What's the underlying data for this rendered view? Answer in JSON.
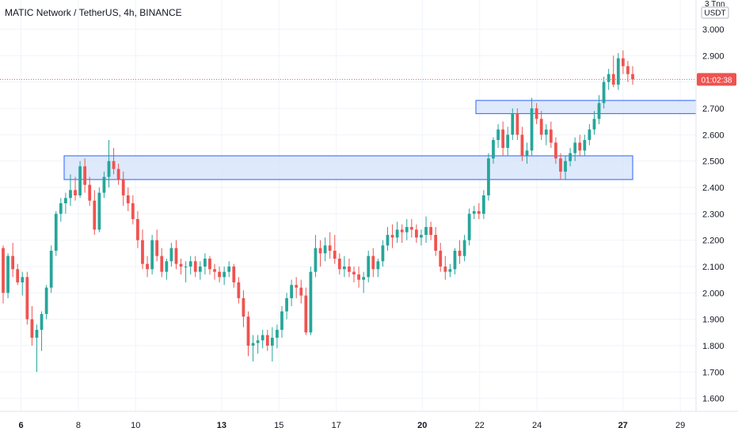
{
  "title": "MATIC Network / TetherUS, 4h, BINANCE",
  "price_axis": {
    "unit": "USDT",
    "scale_mode": "3 Tnn",
    "ticks": [
      "3.000",
      "2.900",
      "2.800",
      "2.700",
      "2.600",
      "2.500",
      "2.400",
      "2.300",
      "2.200",
      "2.100",
      "2.000",
      "1.900",
      "1.800",
      "1.700",
      "1.600"
    ],
    "current_price_label": "01:02:38"
  },
  "time_axis": {
    "ticks": [
      {
        "label": "6",
        "bold": true
      },
      {
        "label": "8",
        "bold": false
      },
      {
        "label": "10",
        "bold": false
      },
      {
        "label": "13",
        "bold": true
      },
      {
        "label": "15",
        "bold": false
      },
      {
        "label": "17",
        "bold": false
      },
      {
        "label": "20",
        "bold": true
      },
      {
        "label": "22",
        "bold": false
      },
      {
        "label": "24",
        "bold": false
      },
      {
        "label": "27",
        "bold": true
      },
      {
        "label": "29",
        "bold": false
      }
    ]
  },
  "colors": {
    "up": "#26a69a",
    "down": "#ef5350",
    "zone_fill": "#d6e4fb",
    "zone_border": "#2962ff",
    "current_price": "#ef5350",
    "grid": "#f0f3fa"
  },
  "chart_data": {
    "type": "candlestick",
    "timeframe": "4h",
    "symbol": "MATIC Network / TetherUS",
    "exchange": "BINANCE",
    "ylim": [
      1.55,
      3.05
    ],
    "x_ticks": [
      "6",
      "8",
      "10",
      "13",
      "15",
      "17",
      "20",
      "22",
      "24",
      "27",
      "29"
    ],
    "current_price": 2.81,
    "zones": [
      {
        "from": "7",
        "to": "27",
        "low": 2.43,
        "high": 2.52
      },
      {
        "from": "22",
        "to": "29",
        "low": 2.68,
        "high": 2.73
      }
    ],
    "candles_ohlc": [
      [
        2.17,
        2.18,
        1.96,
        2.0
      ],
      [
        2.0,
        2.15,
        1.98,
        2.14
      ],
      [
        2.14,
        2.19,
        2.06,
        2.09
      ],
      [
        2.09,
        2.11,
        2.03,
        2.04
      ],
      [
        2.04,
        2.08,
        1.99,
        2.06
      ],
      [
        2.06,
        2.08,
        1.88,
        1.9
      ],
      [
        1.9,
        1.95,
        1.8,
        1.83
      ],
      [
        1.83,
        1.88,
        1.7,
        1.86
      ],
      [
        1.86,
        1.93,
        1.78,
        1.92
      ],
      [
        1.92,
        2.03,
        1.9,
        2.02
      ],
      [
        2.02,
        2.18,
        2.0,
        2.16
      ],
      [
        2.16,
        2.31,
        2.14,
        2.3
      ],
      [
        2.3,
        2.36,
        2.27,
        2.34
      ],
      [
        2.34,
        2.38,
        2.3,
        2.36
      ],
      [
        2.36,
        2.45,
        2.33,
        2.39
      ],
      [
        2.39,
        2.44,
        2.35,
        2.37
      ],
      [
        2.37,
        2.5,
        2.36,
        2.48
      ],
      [
        2.48,
        2.51,
        2.38,
        2.41
      ],
      [
        2.41,
        2.44,
        2.33,
        2.35
      ],
      [
        2.35,
        2.39,
        2.22,
        2.24
      ],
      [
        2.24,
        2.4,
        2.23,
        2.38
      ],
      [
        2.38,
        2.46,
        2.36,
        2.44
      ],
      [
        2.44,
        2.58,
        2.4,
        2.5
      ],
      [
        2.5,
        2.55,
        2.45,
        2.47
      ],
      [
        2.47,
        2.49,
        2.41,
        2.43
      ],
      [
        2.43,
        2.46,
        2.33,
        2.37
      ],
      [
        2.37,
        2.4,
        2.31,
        2.34
      ],
      [
        2.34,
        2.37,
        2.26,
        2.28
      ],
      [
        2.28,
        2.31,
        2.17,
        2.2
      ],
      [
        2.2,
        2.24,
        2.09,
        2.11
      ],
      [
        2.11,
        2.14,
        2.06,
        2.09
      ],
      [
        2.09,
        2.22,
        2.07,
        2.2
      ],
      [
        2.2,
        2.24,
        2.12,
        2.14
      ],
      [
        2.14,
        2.17,
        2.06,
        2.08
      ],
      [
        2.08,
        2.13,
        2.05,
        2.12
      ],
      [
        2.12,
        2.19,
        2.1,
        2.17
      ],
      [
        2.17,
        2.2,
        2.09,
        2.11
      ],
      [
        2.11,
        2.13,
        2.07,
        2.1
      ],
      [
        2.1,
        2.12,
        2.04,
        2.1
      ],
      [
        2.1,
        2.14,
        2.07,
        2.12
      ],
      [
        2.12,
        2.14,
        2.06,
        2.08
      ],
      [
        2.08,
        2.12,
        2.05,
        2.1
      ],
      [
        2.1,
        2.15,
        2.07,
        2.13
      ],
      [
        2.13,
        2.14,
        2.07,
        2.09
      ],
      [
        2.09,
        2.11,
        2.05,
        2.08
      ],
      [
        2.08,
        2.1,
        2.04,
        2.06
      ],
      [
        2.06,
        2.1,
        2.03,
        2.08
      ],
      [
        2.08,
        2.12,
        2.06,
        2.1
      ],
      [
        2.1,
        2.11,
        2.02,
        2.04
      ],
      [
        2.04,
        2.06,
        1.96,
        1.98
      ],
      [
        1.98,
        2.01,
        1.87,
        1.91
      ],
      [
        1.91,
        1.93,
        1.76,
        1.8
      ],
      [
        1.8,
        1.84,
        1.74,
        1.81
      ],
      [
        1.81,
        1.84,
        1.77,
        1.82
      ],
      [
        1.82,
        1.86,
        1.79,
        1.84
      ],
      [
        1.84,
        1.86,
        1.78,
        1.8
      ],
      [
        1.8,
        1.87,
        1.74,
        1.83
      ],
      [
        1.83,
        1.88,
        1.79,
        1.86
      ],
      [
        1.86,
        1.95,
        1.83,
        1.93
      ],
      [
        1.93,
        2.0,
        1.9,
        1.98
      ],
      [
        1.98,
        2.05,
        1.95,
        2.03
      ],
      [
        2.03,
        2.06,
        1.98,
        2.02
      ],
      [
        2.02,
        2.05,
        1.96,
        1.99
      ],
      [
        1.99,
        2.02,
        1.84,
        1.85
      ],
      [
        1.85,
        2.1,
        1.84,
        2.08
      ],
      [
        2.08,
        2.22,
        2.06,
        2.17
      ],
      [
        2.17,
        2.2,
        2.1,
        2.15
      ],
      [
        2.15,
        2.21,
        2.12,
        2.18
      ],
      [
        2.18,
        2.23,
        2.13,
        2.16
      ],
      [
        2.16,
        2.22,
        2.11,
        2.13
      ],
      [
        2.13,
        2.15,
        2.07,
        2.09
      ],
      [
        2.09,
        2.14,
        2.06,
        2.1
      ],
      [
        2.1,
        2.13,
        2.06,
        2.08
      ],
      [
        2.08,
        2.1,
        2.04,
        2.07
      ],
      [
        2.07,
        2.1,
        2.02,
        2.05
      ],
      [
        2.05,
        2.08,
        2.0,
        2.06
      ],
      [
        2.06,
        2.16,
        2.04,
        2.14
      ],
      [
        2.14,
        2.17,
        2.06,
        2.09
      ],
      [
        2.09,
        2.13,
        2.06,
        2.12
      ],
      [
        2.12,
        2.2,
        2.1,
        2.18
      ],
      [
        2.18,
        2.25,
        2.16,
        2.22
      ],
      [
        2.22,
        2.26,
        2.17,
        2.21
      ],
      [
        2.21,
        2.27,
        2.19,
        2.24
      ],
      [
        2.24,
        2.26,
        2.19,
        2.23
      ],
      [
        2.23,
        2.28,
        2.2,
        2.25
      ],
      [
        2.25,
        2.28,
        2.21,
        2.24
      ],
      [
        2.24,
        2.26,
        2.19,
        2.21
      ],
      [
        2.21,
        2.24,
        2.18,
        2.22
      ],
      [
        2.22,
        2.29,
        2.19,
        2.25
      ],
      [
        2.25,
        2.27,
        2.2,
        2.22
      ],
      [
        2.22,
        2.25,
        2.14,
        2.16
      ],
      [
        2.16,
        2.19,
        2.08,
        2.1
      ],
      [
        2.1,
        2.14,
        2.05,
        2.08
      ],
      [
        2.08,
        2.11,
        2.06,
        2.09
      ],
      [
        2.09,
        2.17,
        2.07,
        2.16
      ],
      [
        2.16,
        2.2,
        2.11,
        2.14
      ],
      [
        2.14,
        2.22,
        2.12,
        2.2
      ],
      [
        2.2,
        2.32,
        2.18,
        2.3
      ],
      [
        2.3,
        2.33,
        2.28,
        2.31
      ],
      [
        2.31,
        2.34,
        2.28,
        2.3
      ],
      [
        2.3,
        2.39,
        2.28,
        2.37
      ],
      [
        2.37,
        2.53,
        2.35,
        2.51
      ],
      [
        2.51,
        2.59,
        2.49,
        2.58
      ],
      [
        2.58,
        2.64,
        2.55,
        2.62
      ],
      [
        2.62,
        2.65,
        2.52,
        2.55
      ],
      [
        2.55,
        2.63,
        2.52,
        2.6
      ],
      [
        2.6,
        2.7,
        2.58,
        2.68
      ],
      [
        2.68,
        2.7,
        2.58,
        2.6
      ],
      [
        2.6,
        2.63,
        2.5,
        2.52
      ],
      [
        2.52,
        2.57,
        2.49,
        2.54
      ],
      [
        2.54,
        2.74,
        2.52,
        2.7
      ],
      [
        2.7,
        2.72,
        2.64,
        2.66
      ],
      [
        2.66,
        2.69,
        2.58,
        2.6
      ],
      [
        2.6,
        2.64,
        2.56,
        2.62
      ],
      [
        2.62,
        2.65,
        2.55,
        2.57
      ],
      [
        2.57,
        2.59,
        2.49,
        2.51
      ],
      [
        2.51,
        2.53,
        2.43,
        2.46
      ],
      [
        2.46,
        2.52,
        2.43,
        2.5
      ],
      [
        2.5,
        2.55,
        2.48,
        2.53
      ],
      [
        2.53,
        2.59,
        2.5,
        2.57
      ],
      [
        2.57,
        2.6,
        2.52,
        2.54
      ],
      [
        2.54,
        2.6,
        2.52,
        2.58
      ],
      [
        2.58,
        2.64,
        2.56,
        2.62
      ],
      [
        2.62,
        2.69,
        2.6,
        2.66
      ],
      [
        2.66,
        2.75,
        2.64,
        2.72
      ],
      [
        2.72,
        2.82,
        2.7,
        2.8
      ],
      [
        2.8,
        2.85,
        2.77,
        2.83
      ],
      [
        2.83,
        2.9,
        2.78,
        2.79
      ],
      [
        2.79,
        2.91,
        2.77,
        2.89
      ],
      [
        2.89,
        2.92,
        2.83,
        2.86
      ],
      [
        2.86,
        2.88,
        2.8,
        2.83
      ],
      [
        2.83,
        2.86,
        2.79,
        2.81
      ]
    ]
  }
}
